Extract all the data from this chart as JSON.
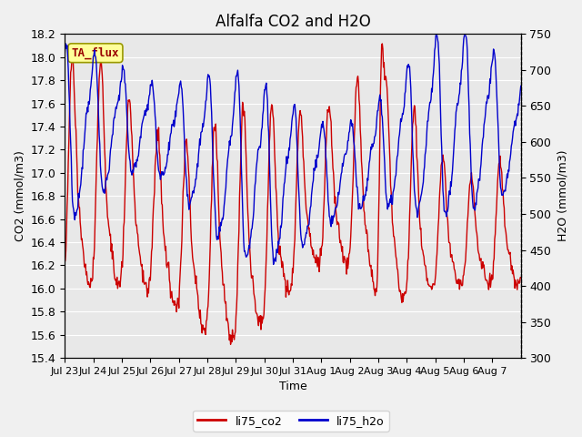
{
  "title": "Alfalfa CO2 and H2O",
  "xlabel": "Time",
  "ylabel_left": "CO2 (mmol/m3)",
  "ylabel_right": "H2O (mmol/m3)",
  "ylim_left": [
    15.4,
    18.2
  ],
  "ylim_right": [
    300,
    750
  ],
  "yticks_left": [
    15.4,
    15.6,
    15.8,
    16.0,
    16.2,
    16.4,
    16.6,
    16.8,
    17.0,
    17.2,
    17.4,
    17.6,
    17.8,
    18.0,
    18.2
  ],
  "yticks_right": [
    300,
    350,
    400,
    450,
    500,
    550,
    600,
    650,
    700,
    750
  ],
  "xtick_labels": [
    "Jul 23",
    "Jul 24",
    "Jul 25",
    "Jul 26",
    "Jul 27",
    "Jul 28",
    "Jul 29",
    "Jul 30",
    "Jul 31",
    "Aug 1",
    "Aug 2",
    "Aug 3",
    "Aug 4",
    "Aug 5",
    "Aug 6",
    "Aug 7"
  ],
  "color_co2": "#cc0000",
  "color_h2o": "#0000cc",
  "legend_co2": "li75_co2",
  "legend_h2o": "li75_h2o",
  "annotation_text": "TA_flux",
  "annotation_color": "#990000",
  "annotation_bg": "#ffff99",
  "annotation_edge": "#999900",
  "plot_bg_color": "#e8e8e8",
  "fig_bg_color": "#f0f0f0",
  "grid_color": "#ffffff",
  "title_fontsize": 12,
  "axis_fontsize": 9,
  "tick_fontsize": 9,
  "line_width": 1.0,
  "n_days": 16,
  "n_per_day": 48
}
